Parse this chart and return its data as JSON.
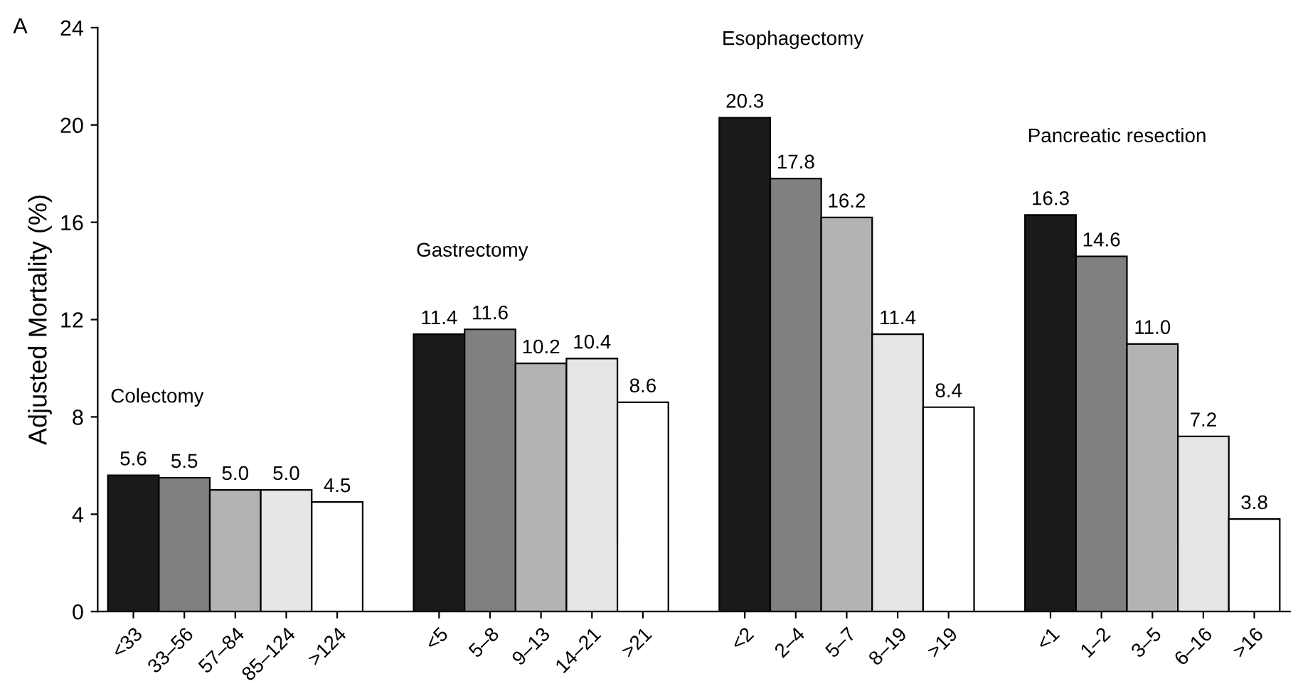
{
  "chart_data": {
    "type": "bar",
    "ylabel": "Adjusted Mortality (%)",
    "categories": [
      "<33",
      "33–56",
      "57–84",
      "85–124",
      ">124",
      null,
      "<5",
      "5–8",
      "9–13",
      "14–21",
      ">21",
      null,
      "<2",
      "2–4",
      "5–7",
      "8–19",
      ">19",
      null,
      "<1",
      "1–2",
      "3–5",
      "6–16",
      ">16"
    ],
    "values": [
      5.6,
      5.5,
      5.0,
      5.0,
      4.5,
      null,
      11.4,
      11.6,
      10.2,
      10.4,
      8.6,
      null,
      20.3,
      17.8,
      16.2,
      11.4,
      8.4,
      null,
      16.3,
      14.6,
      11.0,
      7.2,
      3.8
    ],
    "colors": [
      "#1a1a1a",
      "#808080",
      "#b3b3b3",
      "#e6e6e6",
      "#ffffff",
      null,
      "#1a1a1a",
      "#808080",
      "#b3b3b3",
      "#e6e6e6",
      "#ffffff",
      null,
      "#1a1a1a",
      "#808080",
      "#b3b3b3",
      "#e6e6e6",
      "#ffffff",
      null,
      "#1a1a1a",
      "#808080",
      "#b3b3b3",
      "#e6e6e6",
      "#ffffff"
    ],
    "value_labels": [
      "5.6",
      "5.5",
      "5.0",
      "5.0",
      "4.5",
      null,
      "11.4",
      "11.6",
      "10.2",
      "10.4",
      "8.6",
      null,
      "20.3",
      "17.8",
      "16.2",
      "11.4",
      "8.4",
      null,
      "16.3",
      "14.6",
      "11.0",
      "7.2",
      "3.8"
    ],
    "ylim": [
      0,
      24
    ],
    "yticks": [
      0,
      4,
      8,
      12,
      16,
      20,
      24
    ],
    "grid": false,
    "legend": false,
    "annotations": [
      "A",
      "Colectomy",
      "Gastrectomy",
      "Esophagectomy",
      "Pancreatic resection"
    ]
  }
}
